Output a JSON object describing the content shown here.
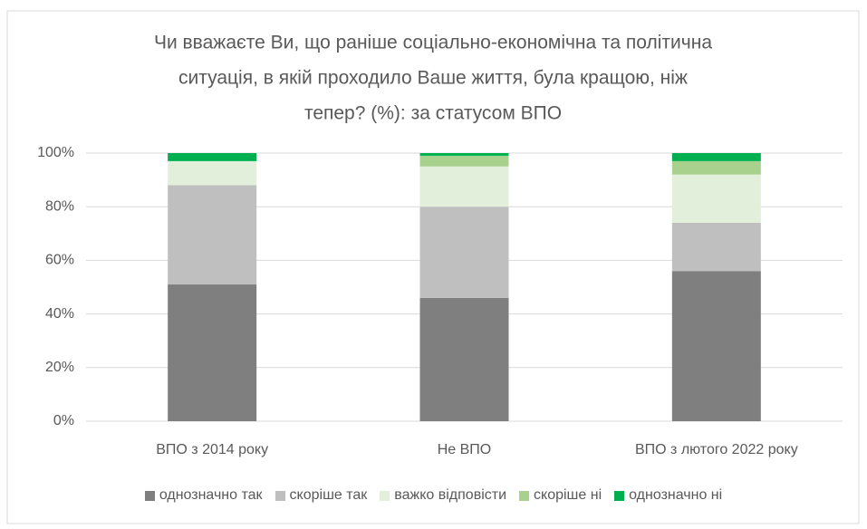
{
  "chart_data": {
    "type": "stacked_bar",
    "title": [
      "Чи вважаєте Ви, що раніше соціально-економічна та політична",
      "ситуація, в якій проходило Ваше життя, була кращою, ніж",
      "тепер? (%): за статусом ВПО"
    ],
    "categories": [
      "ВПО з 2014 року",
      "Не ВПО",
      "ВПО з лютого 2022 року"
    ],
    "series": [
      {
        "name": "однозначно так",
        "color": "#7f7f7f",
        "values": [
          51,
          46,
          56
        ]
      },
      {
        "name": "скоріше так",
        "color": "#bfbfbf",
        "values": [
          37,
          34,
          18
        ]
      },
      {
        "name": "важко відповісти",
        "color": "#e2efda",
        "values": [
          9,
          15,
          18
        ]
      },
      {
        "name": "скоріше ні",
        "color": "#a9d18e",
        "values": [
          0,
          4,
          5
        ]
      },
      {
        "name": "однозначно ні",
        "color": "#00b050",
        "values": [
          3,
          1,
          3
        ]
      }
    ],
    "ylim": [
      0,
      100
    ],
    "yticks": [
      {
        "value": 0,
        "label": "0%"
      },
      {
        "value": 20,
        "label": "20%"
      },
      {
        "value": 40,
        "label": "40%"
      },
      {
        "value": 60,
        "label": "60%"
      },
      {
        "value": 80,
        "label": "80%"
      },
      {
        "value": 100,
        "label": "100%"
      }
    ],
    "grid": true,
    "legend": "bottom"
  }
}
